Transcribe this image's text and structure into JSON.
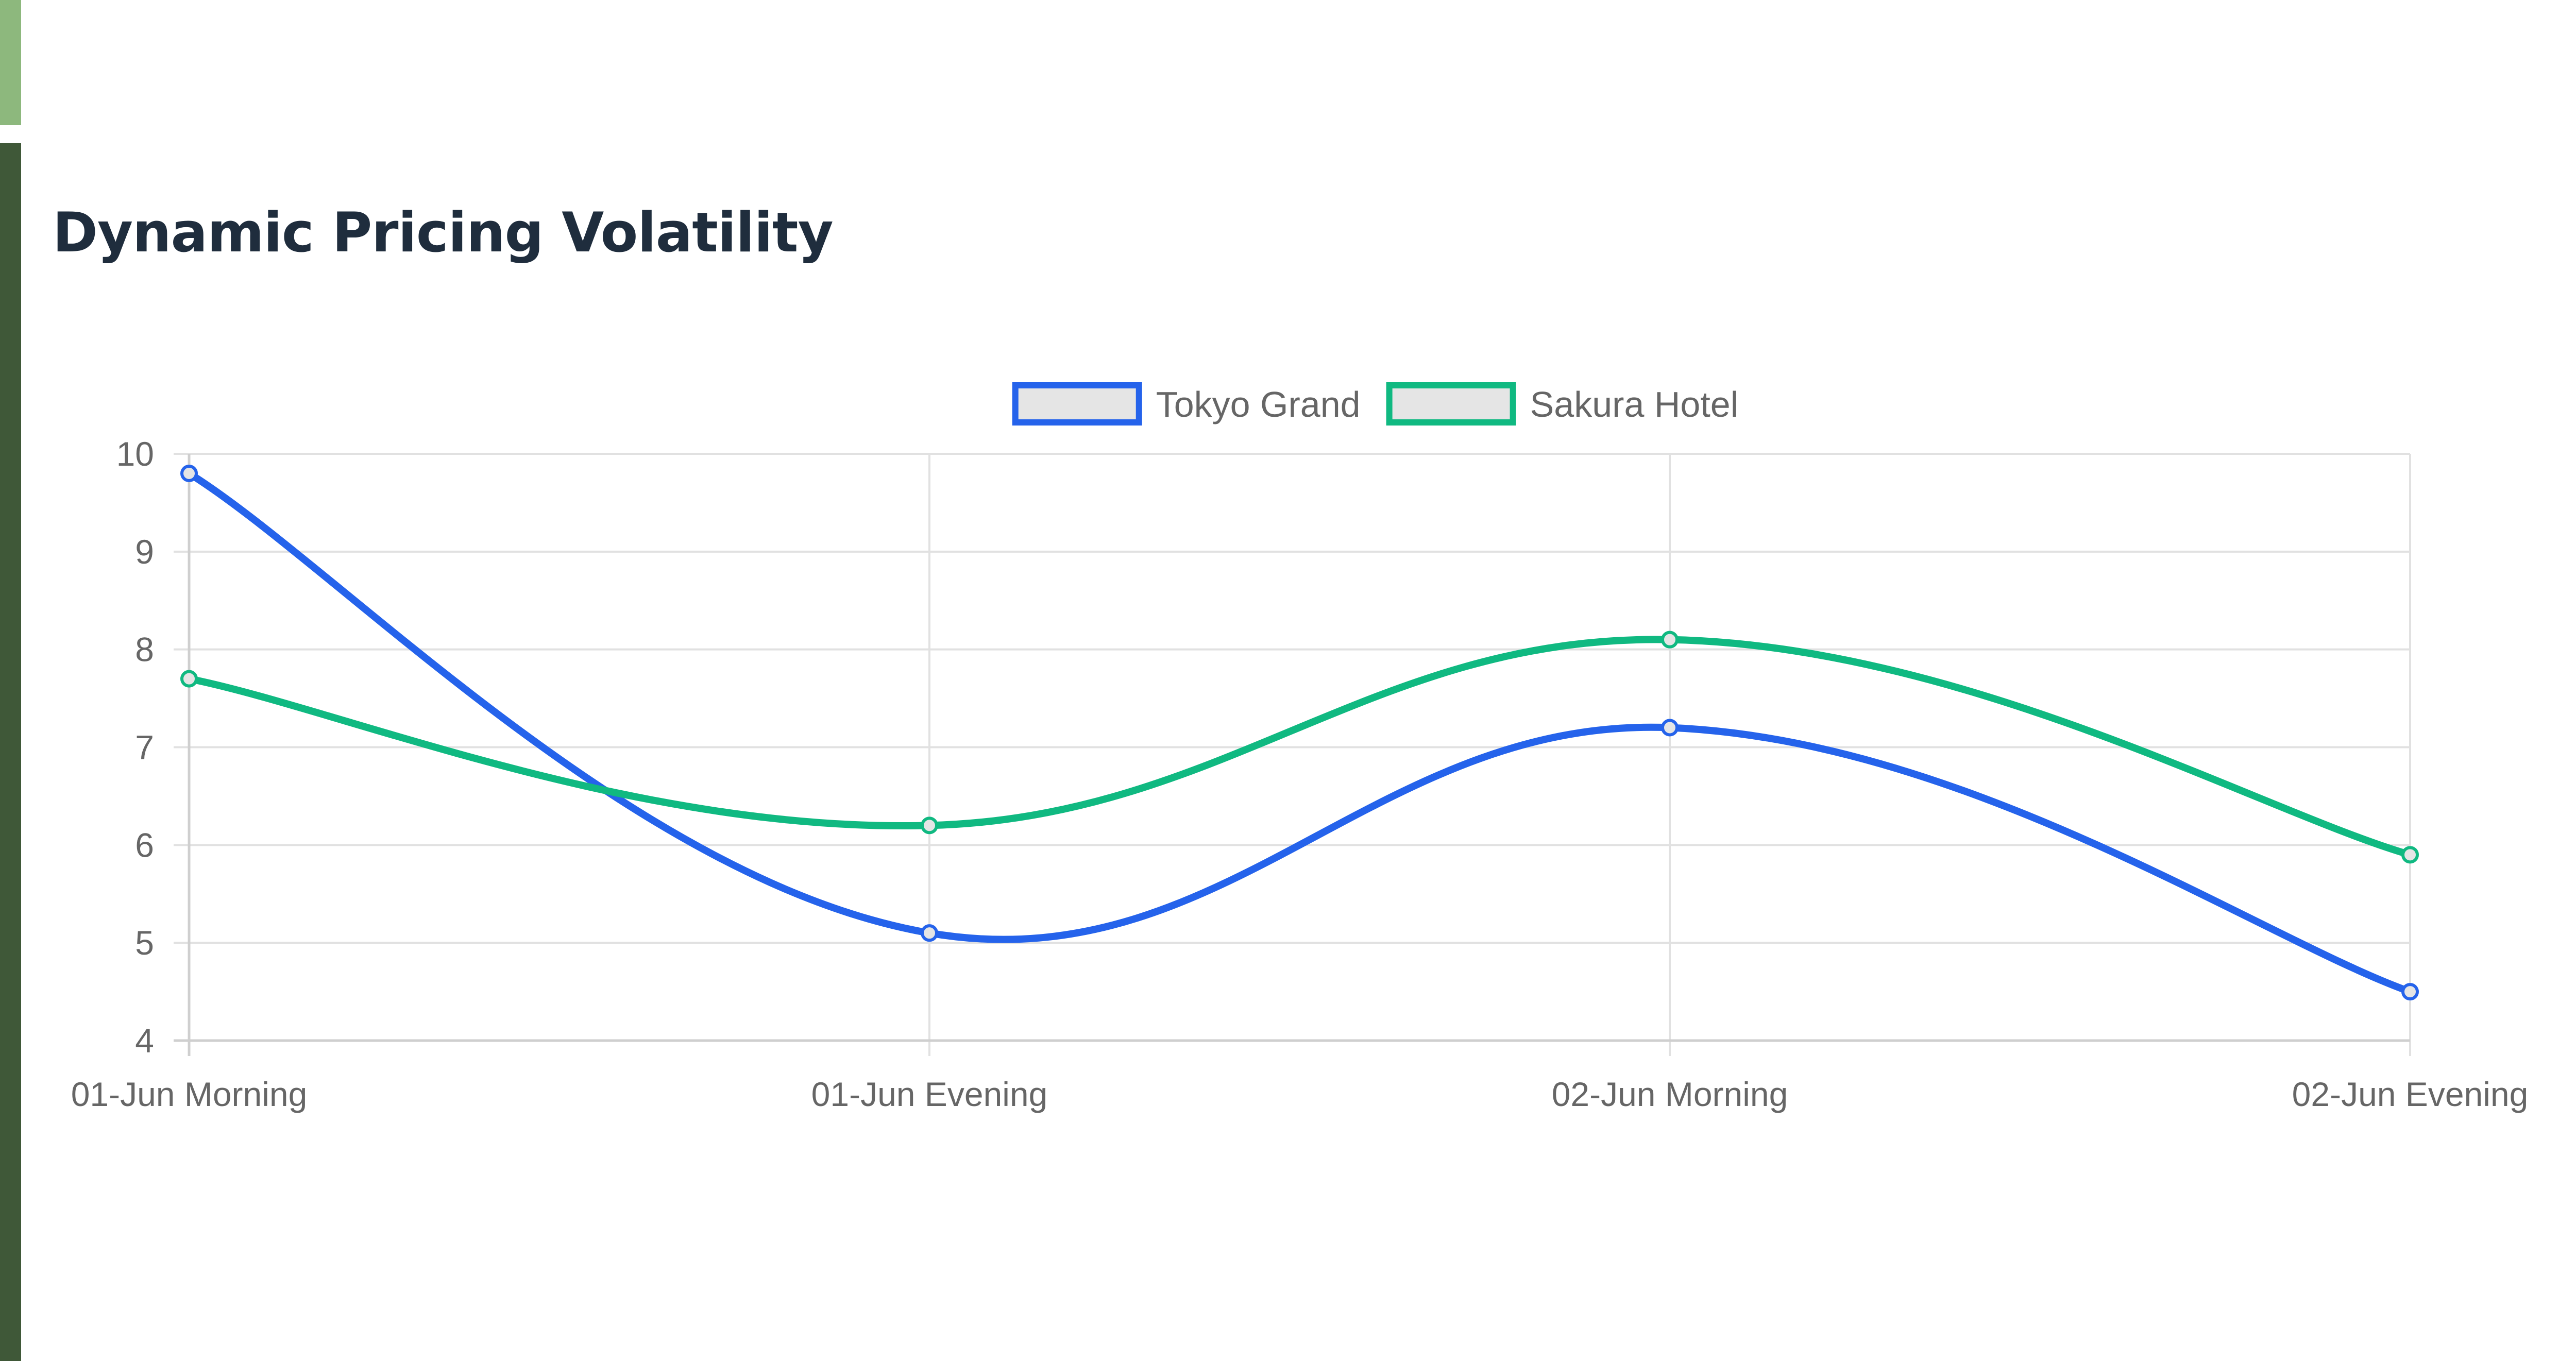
{
  "page": {
    "title": "Dynamic Pricing Volatility"
  },
  "chart_data": {
    "type": "line",
    "title": "Dynamic Pricing Volatility",
    "categories": [
      "01-Jun Morning",
      "01-Jun Evening",
      "02-Jun Morning",
      "02-Jun Evening"
    ],
    "series": [
      {
        "name": "Tokyo Grand",
        "values": [
          9.8,
          5.1,
          7.2,
          4.5
        ],
        "color": "#2563eb"
      },
      {
        "name": "Sakura Hotel",
        "values": [
          7.7,
          6.2,
          8.1,
          5.9
        ],
        "color": "#10b981"
      }
    ],
    "ylim": [
      4,
      10
    ],
    "yticks": [
      4,
      5,
      6,
      7,
      8,
      9,
      10
    ],
    "xlabel": "",
    "ylabel": "",
    "grid": true,
    "legend": "top-center",
    "smooth": true,
    "legend_swatch_fill": "#e5e5e5",
    "grid_color": "#e1e1e1",
    "tick_color": "#666666"
  }
}
